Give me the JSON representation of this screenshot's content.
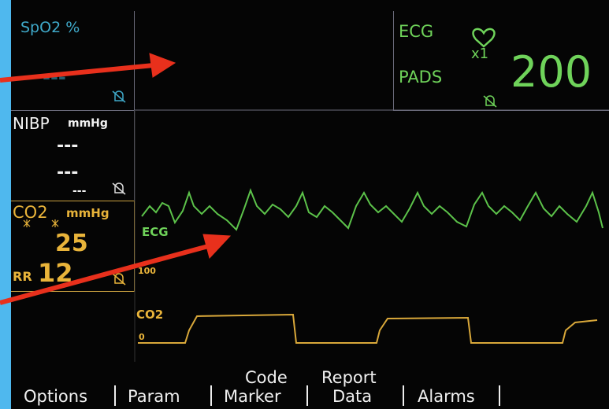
{
  "spo2": {
    "label": "SpO2 %",
    "value": "---"
  },
  "nibp": {
    "label": "NIBP",
    "unit": "mmHg",
    "systolic": "---",
    "diastolic": "---",
    "mean": "---"
  },
  "co2": {
    "label": "CO2",
    "unit": "mmHg",
    "value": 25,
    "rr_label": "RR",
    "rr_value": 12
  },
  "ecg": {
    "label": "ECG",
    "source": "PADS",
    "gain": "x1",
    "heart_rate": 200
  },
  "waveforms": {
    "ecg_label": "ECG",
    "co2_label": "CO2",
    "co2_scale_top": 100,
    "co2_scale_bottom": 0
  },
  "menu": [
    {
      "label": "Options"
    },
    {
      "label": "Param"
    },
    {
      "top": "Code",
      "label": "Marker"
    },
    {
      "top": "Report",
      "label": "Data"
    },
    {
      "label": "Alarms"
    }
  ]
}
